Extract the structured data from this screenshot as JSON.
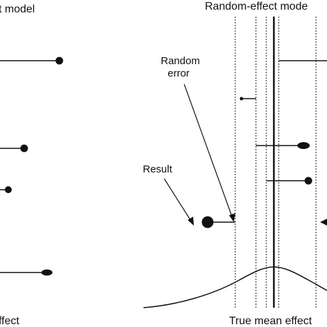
{
  "titles": {
    "left": "t model",
    "right": "Random-effect mode"
  },
  "annotations": {
    "random_error_line1": "Random",
    "random_error_line2": "error",
    "result": "Result"
  },
  "axis_labels": {
    "left": "ffect",
    "right": "True mean effect"
  },
  "colors": {
    "ink": "#111111",
    "background": "#ffffff"
  }
}
